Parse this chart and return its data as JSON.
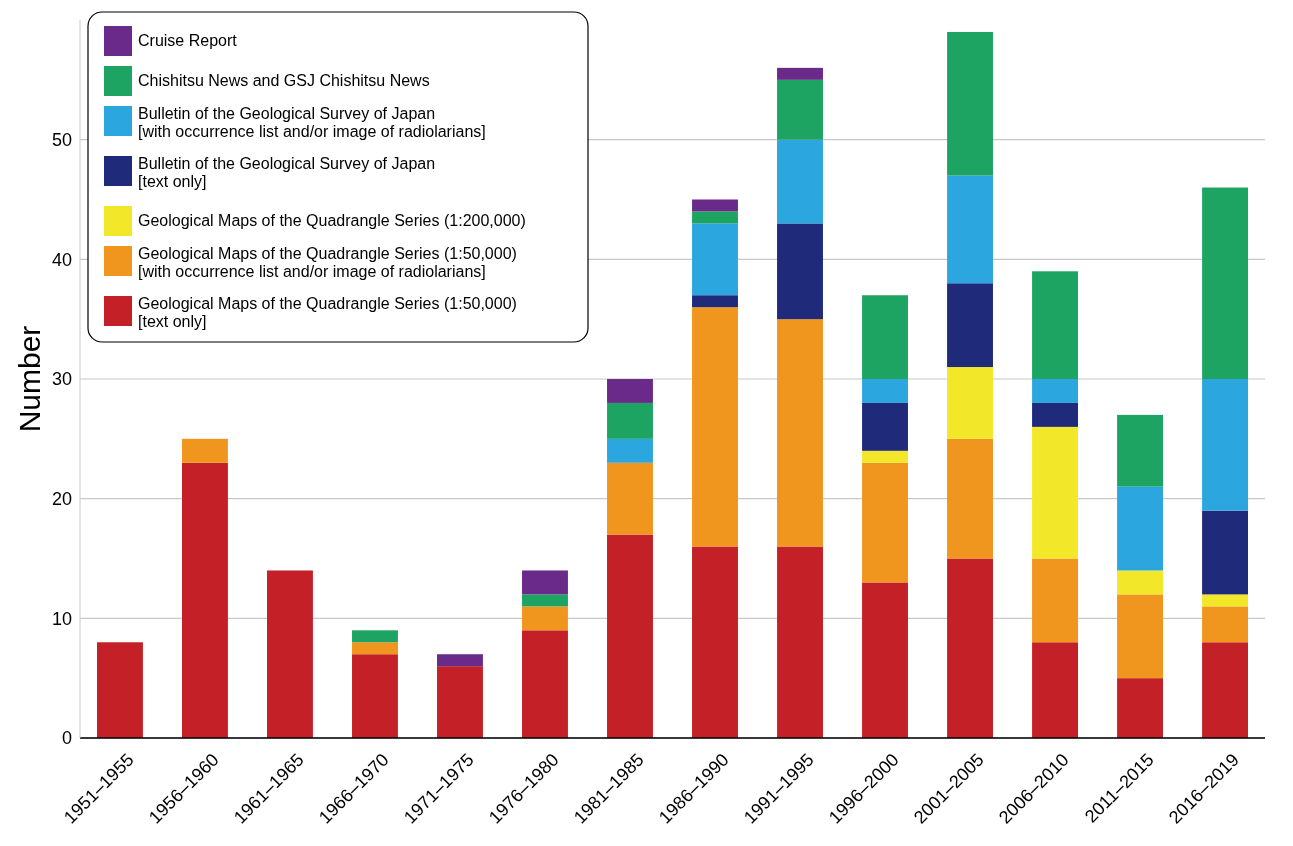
{
  "chart_data": {
    "type": "bar",
    "stacked": true,
    "ylabel": "Number",
    "categories": [
      "1951–1955",
      "1956–1960",
      "1961–1965",
      "1966–1970",
      "1971–1975",
      "1976–1980",
      "1981–1985",
      "1986–1990",
      "1991–1995",
      "1996–2000",
      "2001–2005",
      "2006–2010",
      "2011–2015",
      "2016–2019"
    ],
    "series": [
      {
        "name": "Geological Maps of the Quadrangle Series (1:50,000)\n[text only]",
        "color": "#c42027",
        "values": [
          8,
          23,
          14,
          7,
          6,
          9,
          17,
          16,
          16,
          13,
          15,
          8,
          5,
          8
        ]
      },
      {
        "name": "Geological Maps of the Quadrangle Series (1:50,000)\n[with occurrence list and/or image of radiolarians]",
        "color": "#f0961e",
        "values": [
          0,
          2,
          0,
          1,
          0,
          2,
          6,
          20,
          19,
          10,
          10,
          7,
          7,
          3
        ]
      },
      {
        "name": "Geological Maps of the Quadrangle Series (1:200,000)",
        "color": "#f2e829",
        "values": [
          0,
          0,
          0,
          0,
          0,
          0,
          0,
          0,
          0,
          1,
          6,
          11,
          2,
          1
        ]
      },
      {
        "name": "Bulletin of the Geological Survey of Japan\n[text only]",
        "color": "#1f2a7a",
        "values": [
          0,
          0,
          0,
          0,
          0,
          0,
          0,
          1,
          8,
          4,
          7,
          2,
          0,
          7
        ]
      },
      {
        "name": "Bulletin of the Geological Survey of Japan\n[with occurrence list and/or image of radiolarians]",
        "color": "#2ba6de",
        "values": [
          0,
          0,
          0,
          0,
          0,
          0,
          2,
          6,
          7,
          2,
          9,
          2,
          7,
          11
        ]
      },
      {
        "name": "Chishitsu News and GSJ Chishitsu News",
        "color": "#1ea462",
        "values": [
          0,
          0,
          0,
          1,
          0,
          1,
          3,
          1,
          5,
          7,
          12,
          9,
          6,
          16
        ]
      },
      {
        "name": "Cruise Report",
        "color": "#6a2a8a",
        "values": [
          0,
          0,
          0,
          0,
          1,
          2,
          2,
          1,
          1,
          0,
          0,
          0,
          0,
          0
        ]
      }
    ],
    "ylim": [
      0,
      60
    ],
    "yticks": [
      0,
      10,
      20,
      30,
      40,
      50
    ],
    "grid": "y",
    "legend": "top left"
  }
}
